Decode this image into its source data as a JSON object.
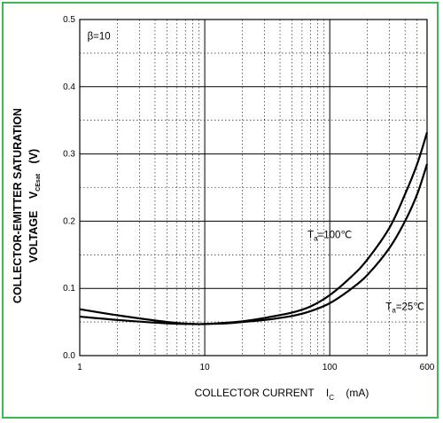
{
  "chart_data": {
    "type": "line",
    "xscale": "log",
    "xlim": [
      1,
      600
    ],
    "ylim": [
      0,
      0.5
    ],
    "grid": true,
    "xlabel": {
      "main": "COLLECTOR CURRENT",
      "symbol": "I",
      "subscript": "C",
      "unit": "(mA)"
    },
    "ylabel": {
      "line1": "COLLECTOR-EMITTER SATURATION",
      "line2": "VOLTAGE",
      "symbol": "V",
      "subscript": "CEsat",
      "unit": "(V)"
    },
    "x_ticks": [
      {
        "value": 1,
        "label": "1"
      },
      {
        "value": 10,
        "label": "10"
      },
      {
        "value": 100,
        "label": "100"
      },
      {
        "value": 600,
        "label": "600"
      }
    ],
    "y_ticks": [
      {
        "value": 0,
        "label": "0.0"
      },
      {
        "value": 0.1,
        "label": "0.1"
      },
      {
        "value": 0.2,
        "label": "0.2"
      },
      {
        "value": 0.3,
        "label": "0.3"
      },
      {
        "value": 0.4,
        "label": "0.4"
      },
      {
        "value": 0.5,
        "label": "0.5"
      }
    ],
    "annotations": [
      {
        "id": "beta",
        "text": "β=10",
        "x": 1.15,
        "y": 0.47
      },
      {
        "id": "ta100",
        "prefix": "T",
        "sub": "a",
        "suffix": "=100℃",
        "x": 100,
        "y": 0.175,
        "anchor": "middle"
      },
      {
        "id": "ta25",
        "prefix": "T",
        "sub": "a",
        "suffix": "=25℃",
        "x": 280,
        "y": 0.068,
        "anchor": "start"
      }
    ],
    "series": [
      {
        "x": [
          1,
          2,
          5,
          8,
          10,
          15,
          20,
          30,
          50,
          70,
          100,
          150,
          200,
          300,
          400,
          500,
          600
        ],
        "y": [
          0.069,
          0.06,
          0.05,
          0.047,
          0.047,
          0.049,
          0.051,
          0.056,
          0.064,
          0.073,
          0.09,
          0.118,
          0.143,
          0.19,
          0.24,
          0.285,
          0.332
        ]
      },
      {
        "x": [
          1,
          2,
          5,
          8,
          10,
          15,
          20,
          30,
          50,
          70,
          100,
          150,
          200,
          300,
          400,
          500,
          600
        ],
        "y": [
          0.058,
          0.053,
          0.048,
          0.047,
          0.047,
          0.048,
          0.05,
          0.053,
          0.059,
          0.066,
          0.078,
          0.1,
          0.12,
          0.16,
          0.2,
          0.24,
          0.285
        ]
      }
    ]
  }
}
